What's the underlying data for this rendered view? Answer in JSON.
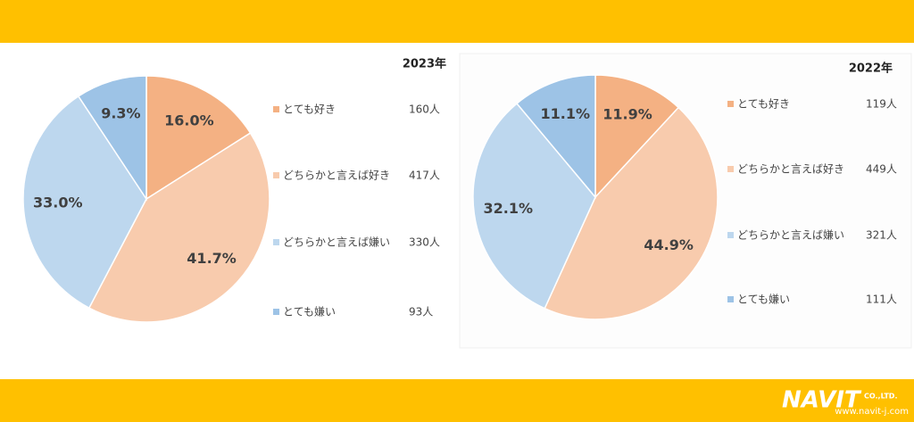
{
  "chart_data": [
    {
      "type": "pie",
      "title": "2023年",
      "categories": [
        "とても好き",
        "どちらかと言えば好き",
        "どちらかと言えば嫌い",
        "とても嫌い"
      ],
      "values": [
        16.0,
        41.7,
        33.0,
        9.3
      ],
      "value_labels": [
        "16.0%",
        "41.7%",
        "33.0%",
        "9.3%"
      ],
      "count_labels": [
        "160人",
        "417人",
        "330人",
        "93人"
      ],
      "colors": [
        "#F4B183",
        "#F8CBAD",
        "#BDD7EE",
        "#9DC3E6"
      ]
    },
    {
      "type": "pie",
      "title": "2022年",
      "categories": [
        "とても好き",
        "どちらかと言えば好き",
        "どちらかと言えば嫌い",
        "とても嫌い"
      ],
      "values": [
        11.9,
        44.9,
        32.1,
        11.1
      ],
      "value_labels": [
        "11.9%",
        "44.9%",
        "32.1%",
        "11.1%"
      ],
      "count_labels": [
        "119人",
        "449人",
        "321人",
        "111人"
      ],
      "colors": [
        "#F4B183",
        "#F8CBAD",
        "#BDD7EE",
        "#9DC3E6"
      ]
    }
  ],
  "footer": {
    "logo": "NAVIT",
    "company": "CO.,LTD.",
    "url": "www.navit-j.com"
  }
}
